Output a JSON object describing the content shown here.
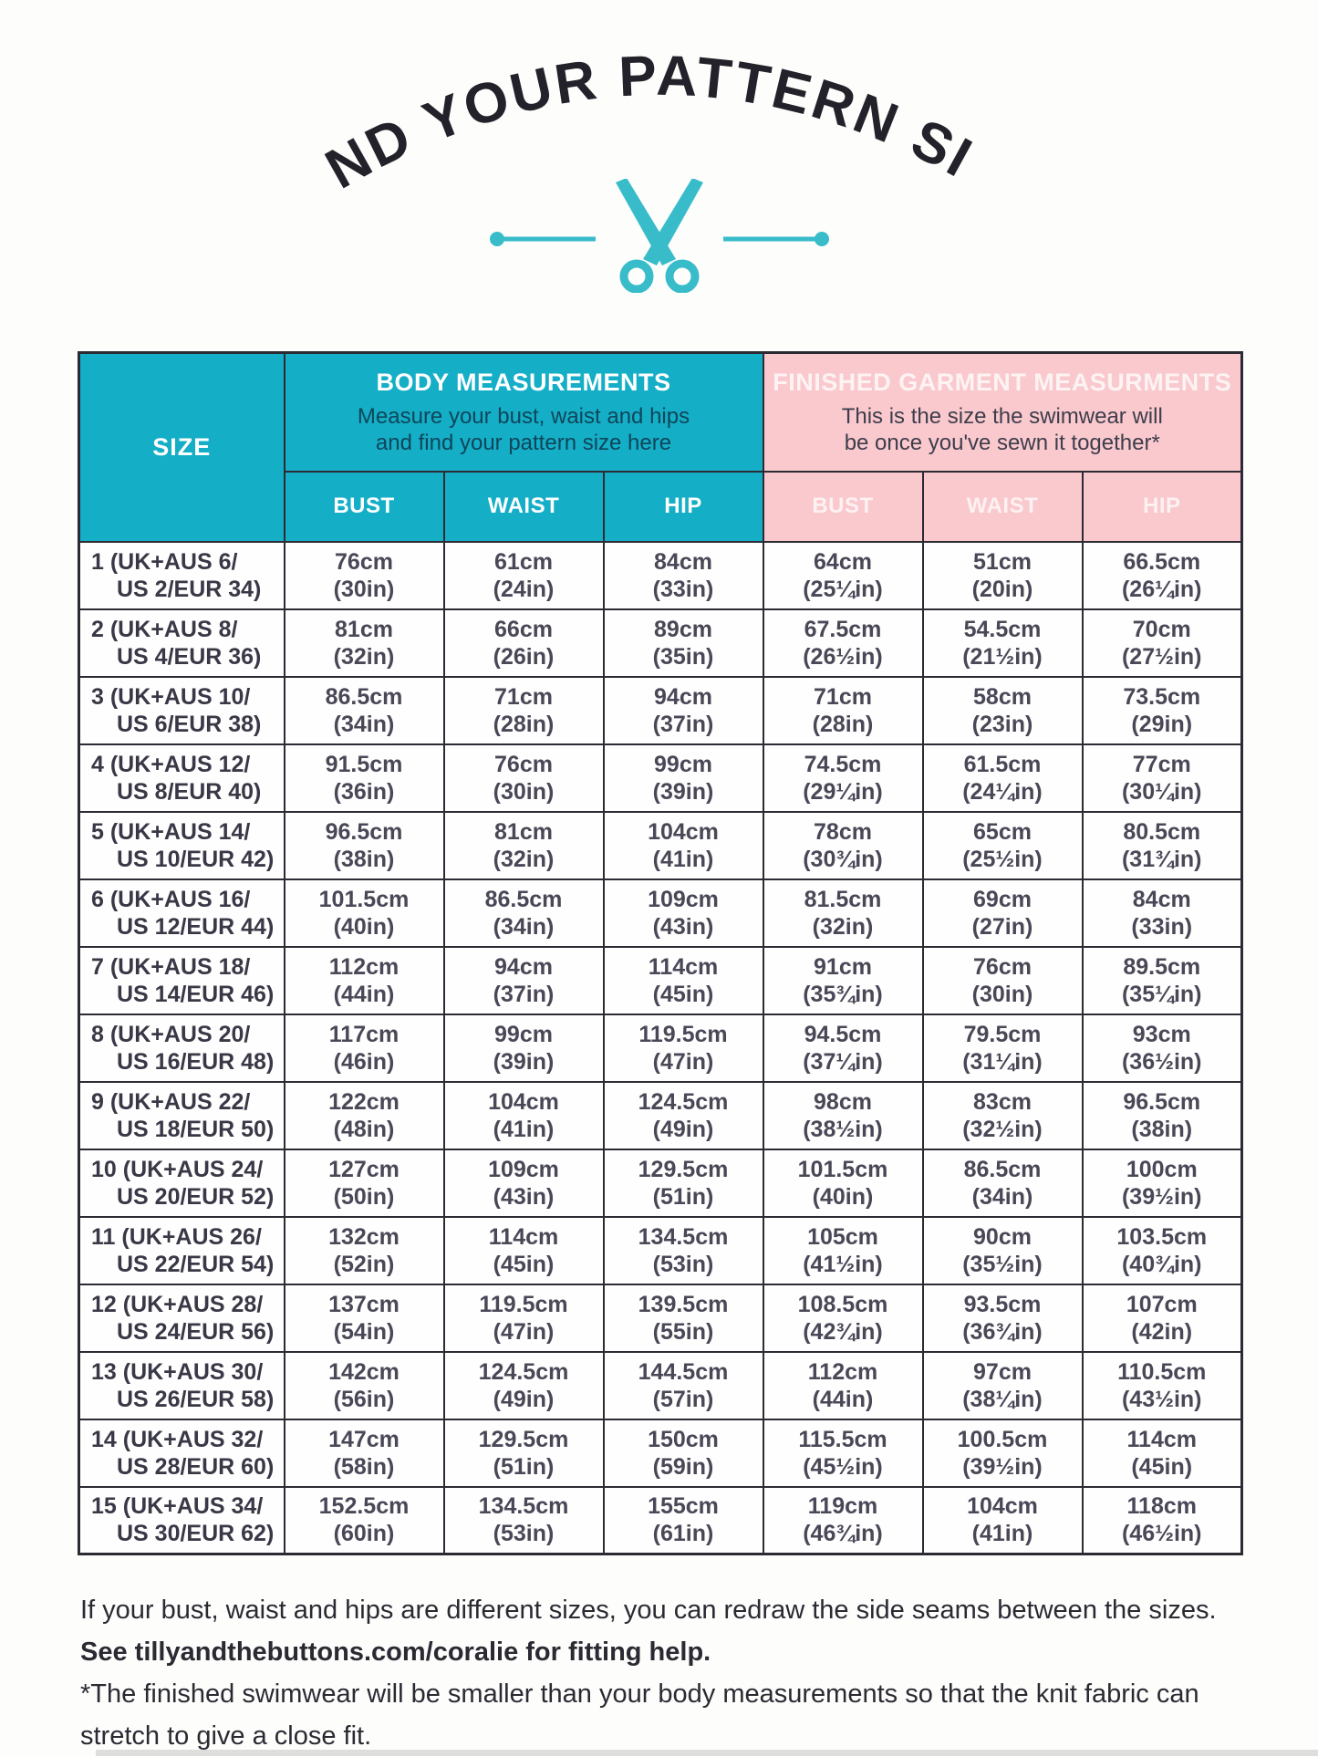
{
  "page": {
    "title": "FIND YOUR PATTERN SIZE",
    "accent_teal": "#15aec7",
    "accent_pink": "#f9c9ce",
    "scissors_color": "#38bcca",
    "ink_color": "#23222a"
  },
  "table": {
    "size_header": "SIZE",
    "body_group": {
      "title": "BODY MEASUREMENTS",
      "subtitle_line1": "Measure your bust, waist and hips",
      "subtitle_line2": "and find your pattern size here"
    },
    "finished_group": {
      "title": "FINISHED GARMENT MEASURMENTS",
      "subtitle_line1": "This is the size the swimwear will",
      "subtitle_line2": "be once you've sewn it together*"
    },
    "sub_headers": [
      "BUST",
      "WAIST",
      "HIP",
      "BUST",
      "WAIST",
      "HIP"
    ],
    "rows": [
      {
        "size_line1": "1 (UK+AUS 6/",
        "size_line2": "US 2/EUR 34)",
        "cells": [
          [
            "76cm",
            "(30in)"
          ],
          [
            "61cm",
            "(24in)"
          ],
          [
            "84cm",
            "(33in)"
          ],
          [
            "64cm",
            "(25¼in)"
          ],
          [
            "51cm",
            "(20in)"
          ],
          [
            "66.5cm",
            "(26¼in)"
          ]
        ]
      },
      {
        "size_line1": "2 (UK+AUS 8/",
        "size_line2": "US 4/EUR 36)",
        "cells": [
          [
            "81cm",
            "(32in)"
          ],
          [
            "66cm",
            "(26in)"
          ],
          [
            "89cm",
            "(35in)"
          ],
          [
            "67.5cm",
            "(26½in)"
          ],
          [
            "54.5cm",
            "(21½in)"
          ],
          [
            "70cm",
            "(27½in)"
          ]
        ]
      },
      {
        "size_line1": "3 (UK+AUS 10/",
        "size_line2": "US 6/EUR 38)",
        "cells": [
          [
            "86.5cm",
            "(34in)"
          ],
          [
            "71cm",
            "(28in)"
          ],
          [
            "94cm",
            "(37in)"
          ],
          [
            "71cm",
            "(28in)"
          ],
          [
            "58cm",
            "(23in)"
          ],
          [
            "73.5cm",
            "(29in)"
          ]
        ]
      },
      {
        "size_line1": "4 (UK+AUS 12/",
        "size_line2": "US 8/EUR 40)",
        "cells": [
          [
            "91.5cm",
            "(36in)"
          ],
          [
            "76cm",
            "(30in)"
          ],
          [
            "99cm",
            "(39in)"
          ],
          [
            "74.5cm",
            "(29¼in)"
          ],
          [
            "61.5cm",
            "(24¼in)"
          ],
          [
            "77cm",
            "(30¼in)"
          ]
        ]
      },
      {
        "size_line1": "5 (UK+AUS 14/",
        "size_line2": "US 10/EUR 42)",
        "cells": [
          [
            "96.5cm",
            "(38in)"
          ],
          [
            "81cm",
            "(32in)"
          ],
          [
            "104cm",
            "(41in)"
          ],
          [
            "78cm",
            "(30¾in)"
          ],
          [
            "65cm",
            "(25½in)"
          ],
          [
            "80.5cm",
            "(31¾in)"
          ]
        ]
      },
      {
        "size_line1": "6 (UK+AUS 16/",
        "size_line2": "US 12/EUR 44)",
        "cells": [
          [
            "101.5cm",
            "(40in)"
          ],
          [
            "86.5cm",
            "(34in)"
          ],
          [
            "109cm",
            "(43in)"
          ],
          [
            "81.5cm",
            "(32in)"
          ],
          [
            "69cm",
            "(27in)"
          ],
          [
            "84cm",
            "(33in)"
          ]
        ]
      },
      {
        "size_line1": "7 (UK+AUS 18/",
        "size_line2": "US 14/EUR 46)",
        "cells": [
          [
            "112cm",
            "(44in)"
          ],
          [
            "94cm",
            "(37in)"
          ],
          [
            "114cm",
            "(45in)"
          ],
          [
            "91cm",
            "(35¾in)"
          ],
          [
            "76cm",
            "(30in)"
          ],
          [
            "89.5cm",
            "(35¼in)"
          ]
        ]
      },
      {
        "size_line1": "8 (UK+AUS 20/",
        "size_line2": "US 16/EUR 48)",
        "cells": [
          [
            "117cm",
            "(46in)"
          ],
          [
            "99cm",
            "(39in)"
          ],
          [
            "119.5cm",
            "(47in)"
          ],
          [
            "94.5cm",
            "(37¼in)"
          ],
          [
            "79.5cm",
            "(31¼in)"
          ],
          [
            "93cm",
            "(36½in)"
          ]
        ]
      },
      {
        "size_line1": "9 (UK+AUS 22/",
        "size_line2": "US 18/EUR 50)",
        "cells": [
          [
            "122cm",
            "(48in)"
          ],
          [
            "104cm",
            "(41in)"
          ],
          [
            "124.5cm",
            "(49in)"
          ],
          [
            "98cm",
            "(38½in)"
          ],
          [
            "83cm",
            "(32½in)"
          ],
          [
            "96.5cm",
            "(38in)"
          ]
        ]
      },
      {
        "size_line1": "10 (UK+AUS 24/",
        "size_line2": "US 20/EUR 52)",
        "cells": [
          [
            "127cm",
            "(50in)"
          ],
          [
            "109cm",
            "(43in)"
          ],
          [
            "129.5cm",
            "(51in)"
          ],
          [
            "101.5cm",
            "(40in)"
          ],
          [
            "86.5cm",
            "(34in)"
          ],
          [
            "100cm",
            "(39½in)"
          ]
        ]
      },
      {
        "size_line1": "11 (UK+AUS 26/",
        "size_line2": "US 22/EUR 54)",
        "cells": [
          [
            "132cm",
            "(52in)"
          ],
          [
            "114cm",
            "(45in)"
          ],
          [
            "134.5cm",
            "(53in)"
          ],
          [
            "105cm",
            "(41½in)"
          ],
          [
            "90cm",
            "(35½in)"
          ],
          [
            "103.5cm",
            "(40¾in)"
          ]
        ]
      },
      {
        "size_line1": "12 (UK+AUS 28/",
        "size_line2": "US 24/EUR 56)",
        "cells": [
          [
            "137cm",
            "(54in)"
          ],
          [
            "119.5cm",
            "(47in)"
          ],
          [
            "139.5cm",
            "(55in)"
          ],
          [
            "108.5cm",
            "(42¾in)"
          ],
          [
            "93.5cm",
            "(36¾in)"
          ],
          [
            "107cm",
            "(42in)"
          ]
        ]
      },
      {
        "size_line1": "13 (UK+AUS 30/",
        "size_line2": "US 26/EUR 58)",
        "cells": [
          [
            "142cm",
            "(56in)"
          ],
          [
            "124.5cm",
            "(49in)"
          ],
          [
            "144.5cm",
            "(57in)"
          ],
          [
            "112cm",
            "(44in)"
          ],
          [
            "97cm",
            "(38¼in)"
          ],
          [
            "110.5cm",
            "(43½in)"
          ]
        ]
      },
      {
        "size_line1": "14 (UK+AUS 32/",
        "size_line2": "US 28/EUR 60)",
        "cells": [
          [
            "147cm",
            "(58in)"
          ],
          [
            "129.5cm",
            "(51in)"
          ],
          [
            "150cm",
            "(59in)"
          ],
          [
            "115.5cm",
            "(45½in)"
          ],
          [
            "100.5cm",
            "(39½in)"
          ],
          [
            "114cm",
            "(45in)"
          ]
        ]
      },
      {
        "size_line1": "15 (UK+AUS 34/",
        "size_line2": "US 30/EUR 62)",
        "cells": [
          [
            "152.5cm",
            "(60in)"
          ],
          [
            "134.5cm",
            "(53in)"
          ],
          [
            "155cm",
            "(61in)"
          ],
          [
            "119cm",
            "(46¾in)"
          ],
          [
            "104cm",
            "(41in)"
          ],
          [
            "118cm",
            "(46½in)"
          ]
        ]
      }
    ]
  },
  "footer": {
    "line1_normal": "If your bust, waist and hips are different sizes, you can redraw the side seams between the sizes. ",
    "line1_bold": "See tillyandthebuttons.com/coralie for fitting help.",
    "line2": "*The finished swimwear will be smaller than your body measurements so that the knit fabric can stretch to give a close fit."
  }
}
